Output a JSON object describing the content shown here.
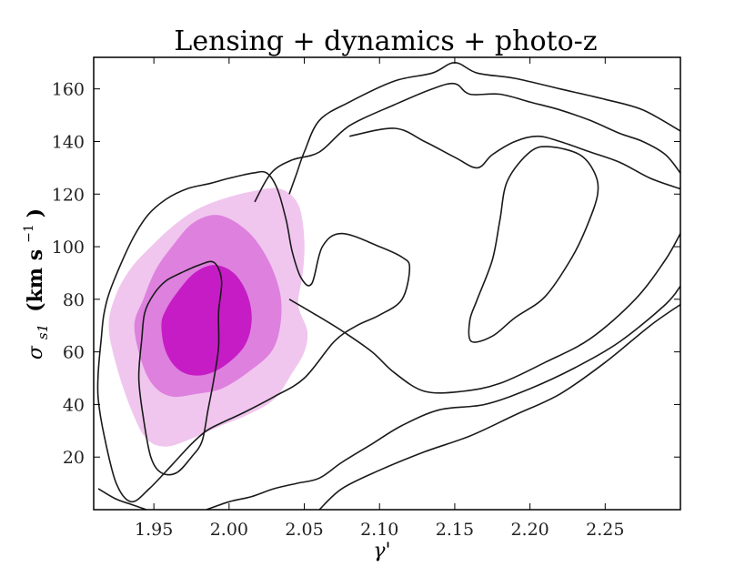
{
  "chart_data": {
    "type": "contour",
    "title": "Lensing + dynamics + photo-z",
    "xlabel": "γ'",
    "ylabel": "σ_s1 (km s⁻¹)",
    "ylabel_parts": {
      "symbol": "σ",
      "subscript": "s1",
      "units": "(km s",
      "exponent": "−1",
      "close": ")"
    },
    "xlim": [
      1.91,
      2.3
    ],
    "ylim": [
      0,
      172
    ],
    "xticks": [
      1.95,
      2.0,
      2.05,
      2.1,
      2.15,
      2.2,
      2.25
    ],
    "xtick_labels": [
      "1.95",
      "2.00",
      "2.05",
      "2.10",
      "2.15",
      "2.20",
      "2.25"
    ],
    "yticks": [
      20,
      40,
      60,
      80,
      100,
      120,
      140,
      160
    ],
    "ytick_labels": [
      "20",
      "40",
      "60",
      "80",
      "100",
      "120",
      "140",
      "160"
    ],
    "grid": false,
    "filled_contours": [
      {
        "name": "lensing-dynamics-outer",
        "color": "#f0c6ee",
        "points": [
          [
            1.92,
            70
          ],
          [
            1.925,
            55
          ],
          [
            1.935,
            38
          ],
          [
            1.945,
            27
          ],
          [
            1.958,
            24
          ],
          [
            1.975,
            27
          ],
          [
            1.995,
            32
          ],
          [
            2.012,
            36
          ],
          [
            2.03,
            42
          ],
          [
            2.042,
            52
          ],
          [
            2.05,
            60
          ],
          [
            2.052,
            68
          ],
          [
            2.046,
            78
          ],
          [
            2.049,
            90
          ],
          [
            2.05,
            103
          ],
          [
            2.046,
            116
          ],
          [
            2.034,
            122
          ],
          [
            2.015,
            121
          ],
          [
            1.995,
            118
          ],
          [
            1.978,
            114
          ],
          [
            1.963,
            108
          ],
          [
            1.948,
            100
          ],
          [
            1.935,
            92
          ],
          [
            1.925,
            82
          ]
        ]
      },
      {
        "name": "lensing-dynamics-middle",
        "color": "#de80de",
        "points": [
          [
            1.937,
            70
          ],
          [
            1.942,
            56
          ],
          [
            1.95,
            47
          ],
          [
            1.962,
            43
          ],
          [
            1.978,
            44
          ],
          [
            1.995,
            46
          ],
          [
            2.012,
            52
          ],
          [
            2.028,
            60
          ],
          [
            2.034,
            70
          ],
          [
            2.034,
            82
          ],
          [
            2.026,
            95
          ],
          [
            2.012,
            106
          ],
          [
            1.993,
            112
          ],
          [
            1.976,
            109
          ],
          [
            1.962,
            100
          ],
          [
            1.951,
            91
          ],
          [
            1.943,
            80
          ]
        ]
      },
      {
        "name": "lensing-dynamics-inner",
        "color": "#c61cc6",
        "points": [
          [
            1.955,
            70
          ],
          [
            1.958,
            60
          ],
          [
            1.967,
            53
          ],
          [
            1.98,
            51
          ],
          [
            1.995,
            54
          ],
          [
            2.01,
            62
          ],
          [
            2.015,
            72
          ],
          [
            2.012,
            82
          ],
          [
            2.003,
            90
          ],
          [
            1.99,
            93
          ],
          [
            1.977,
            90
          ],
          [
            1.966,
            83
          ],
          [
            1.958,
            76
          ]
        ]
      }
    ],
    "line_contours": [
      {
        "name": "contour-outer-left",
        "points": [
          [
            1.913,
            52
          ],
          [
            1.915,
            65
          ],
          [
            1.917,
            75
          ],
          [
            1.922,
            85
          ],
          [
            1.935,
            102
          ],
          [
            1.946,
            112
          ],
          [
            1.958,
            118
          ],
          [
            1.972,
            122
          ],
          [
            1.987,
            124
          ],
          [
            2.0,
            126
          ],
          [
            2.016,
            128
          ],
          [
            2.025,
            128
          ],
          [
            2.032,
            122
          ],
          [
            2.038,
            110
          ],
          [
            2.042,
            98
          ],
          [
            2.048,
            88
          ],
          [
            2.055,
            86
          ],
          [
            2.062,
            100
          ],
          [
            2.075,
            105
          ],
          [
            2.1,
            100
          ],
          [
            2.115,
            96
          ],
          [
            2.12,
            92
          ],
          [
            2.115,
            80
          ],
          [
            2.1,
            74
          ],
          [
            2.085,
            70
          ],
          [
            2.07,
            64
          ],
          [
            2.05,
            50
          ],
          [
            2.03,
            43
          ],
          [
            2.01,
            37
          ],
          [
            1.995,
            33
          ],
          [
            1.985,
            30
          ],
          [
            1.975,
            25
          ],
          [
            1.962,
            17
          ],
          [
            1.947,
            8
          ],
          [
            1.935,
            3
          ],
          [
            1.925,
            10
          ],
          [
            1.917,
            28
          ],
          [
            1.913,
            42
          ]
        ]
      },
      {
        "name": "contour-inner-left",
        "points": [
          [
            1.94,
            50
          ],
          [
            1.942,
            65
          ],
          [
            1.944,
            75
          ],
          [
            1.95,
            82
          ],
          [
            1.958,
            87
          ],
          [
            1.968,
            90
          ],
          [
            1.98,
            93
          ],
          [
            1.99,
            94
          ],
          [
            1.995,
            87
          ],
          [
            1.993,
            75
          ],
          [
            1.993,
            62
          ],
          [
            1.99,
            50
          ],
          [
            1.986,
            38
          ],
          [
            1.982,
            26
          ],
          [
            1.975,
            20
          ],
          [
            1.965,
            14
          ],
          [
            1.955,
            14
          ],
          [
            1.948,
            20
          ],
          [
            1.943,
            35
          ]
        ]
      },
      {
        "name": "contour-inner-right",
        "points": [
          [
            2.161,
            64
          ],
          [
            2.175,
            66
          ],
          [
            2.19,
            73
          ],
          [
            2.21,
            81
          ],
          [
            2.228,
            96
          ],
          [
            2.238,
            108
          ],
          [
            2.245,
            120
          ],
          [
            2.243,
            128
          ],
          [
            2.233,
            135
          ],
          [
            2.213,
            138
          ],
          [
            2.2,
            136
          ],
          [
            2.185,
            125
          ],
          [
            2.18,
            110
          ],
          [
            2.175,
            95
          ],
          [
            2.165,
            80
          ],
          [
            2.16,
            72
          ]
        ]
      },
      {
        "name": "contour-outer-right-top",
        "points": [
          [
            2.017,
            117
          ],
          [
            2.028,
            128
          ],
          [
            2.042,
            133
          ],
          [
            2.06,
            136
          ],
          [
            2.08,
            146
          ],
          [
            2.11,
            154
          ],
          [
            2.135,
            160
          ],
          [
            2.15,
            162
          ],
          [
            2.16,
            158
          ],
          [
            2.18,
            158
          ],
          [
            2.2,
            155
          ],
          [
            2.22,
            152
          ],
          [
            2.24,
            148
          ],
          [
            2.26,
            143
          ],
          [
            2.275,
            140
          ],
          [
            2.29,
            135
          ],
          [
            2.3,
            128
          ]
        ]
      },
      {
        "name": "contour-outer-right-bottom",
        "points": [
          [
            2.04,
            80
          ],
          [
            2.055,
            75
          ],
          [
            2.075,
            68
          ],
          [
            2.095,
            60
          ],
          [
            2.11,
            52
          ],
          [
            2.13,
            45
          ],
          [
            2.155,
            45
          ],
          [
            2.18,
            48
          ],
          [
            2.21,
            56
          ],
          [
            2.24,
            65
          ],
          [
            2.27,
            80
          ],
          [
            2.29,
            95
          ],
          [
            2.3,
            105
          ]
        ]
      },
      {
        "name": "contour-bottom-left-tail",
        "points": [
          [
            1.913,
            8
          ],
          [
            1.925,
            4
          ],
          [
            1.935,
            2
          ],
          [
            1.945,
            0
          ]
        ]
      },
      {
        "name": "contour-bottom-center-tail",
        "points": [
          [
            1.985,
            0
          ],
          [
            2.0,
            3
          ],
          [
            2.015,
            5
          ],
          [
            2.03,
            8
          ],
          [
            2.045,
            10
          ],
          [
            2.06,
            12
          ],
          [
            2.075,
            18
          ],
          [
            2.095,
            25
          ],
          [
            2.115,
            32
          ],
          [
            2.14,
            38
          ],
          [
            2.17,
            40
          ],
          [
            2.2,
            46
          ],
          [
            2.23,
            54
          ],
          [
            2.26,
            64
          ],
          [
            2.29,
            78
          ],
          [
            2.3,
            85
          ]
        ]
      },
      {
        "name": "contour-bottom-right-tail",
        "points": [
          [
            2.06,
            0
          ],
          [
            2.075,
            8
          ],
          [
            2.1,
            15
          ],
          [
            2.13,
            22
          ],
          [
            2.16,
            28
          ],
          [
            2.19,
            36
          ],
          [
            2.22,
            44
          ],
          [
            2.25,
            56
          ],
          [
            2.28,
            70
          ],
          [
            2.3,
            78
          ]
        ]
      },
      {
        "name": "contour-top-center-upper",
        "points": [
          [
            2.04,
            120
          ],
          [
            2.045,
            128
          ],
          [
            2.05,
            136
          ],
          [
            2.06,
            148
          ],
          [
            2.08,
            155
          ],
          [
            2.11,
            163
          ],
          [
            2.135,
            166
          ],
          [
            2.15,
            170
          ],
          [
            2.165,
            166
          ],
          [
            2.19,
            164
          ],
          [
            2.22,
            160
          ],
          [
            2.25,
            156
          ],
          [
            2.275,
            152
          ],
          [
            2.3,
            144
          ]
        ]
      },
      {
        "name": "contour-top-center-lower",
        "points": [
          [
            2.08,
            142
          ],
          [
            2.11,
            145
          ],
          [
            2.13,
            140
          ],
          [
            2.15,
            134
          ],
          [
            2.165,
            130
          ],
          [
            2.175,
            135
          ],
          [
            2.19,
            140
          ],
          [
            2.205,
            142
          ],
          [
            2.22,
            140
          ],
          [
            2.24,
            136
          ],
          [
            2.26,
            132
          ],
          [
            2.28,
            126
          ],
          [
            2.3,
            122
          ]
        ]
      }
    ]
  }
}
